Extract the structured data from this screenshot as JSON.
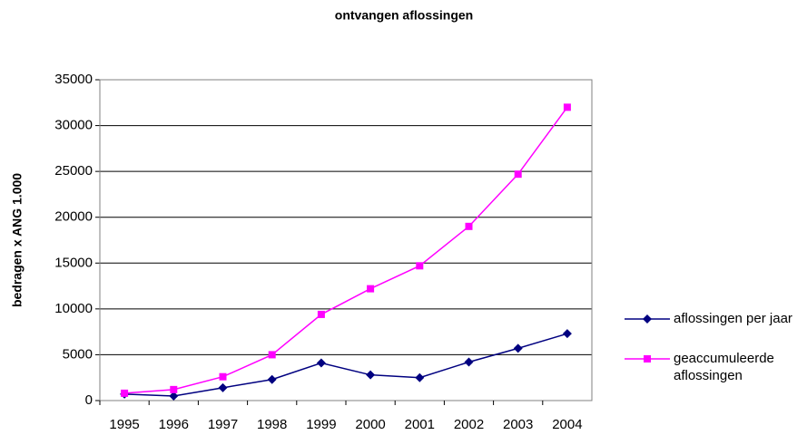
{
  "chart_data": {
    "type": "line",
    "title": "ontvangen aflossingen",
    "y_label": "bedragen x ANG 1.000",
    "categories": [
      "1995",
      "1996",
      "1997",
      "1998",
      "1999",
      "2000",
      "2001",
      "2002",
      "2003",
      "2004"
    ],
    "series": [
      {
        "name": "aflossingen per jaar",
        "color": "#000080",
        "marker": "diamond",
        "values": [
          700,
          500,
          1400,
          2300,
          4100,
          2800,
          2500,
          4200,
          5700,
          7300
        ]
      },
      {
        "name": "geaccumuleerde aflossingen",
        "color": "#ff00ff",
        "marker": "square",
        "values": [
          800,
          1200,
          2600,
          5000,
          9400,
          12200,
          14700,
          19000,
          24700,
          32000
        ]
      }
    ],
    "ylim": [
      0,
      35000
    ],
    "yticks": [
      0,
      5000,
      10000,
      15000,
      20000,
      25000,
      30000,
      35000
    ],
    "grid": true,
    "legend": "right"
  }
}
